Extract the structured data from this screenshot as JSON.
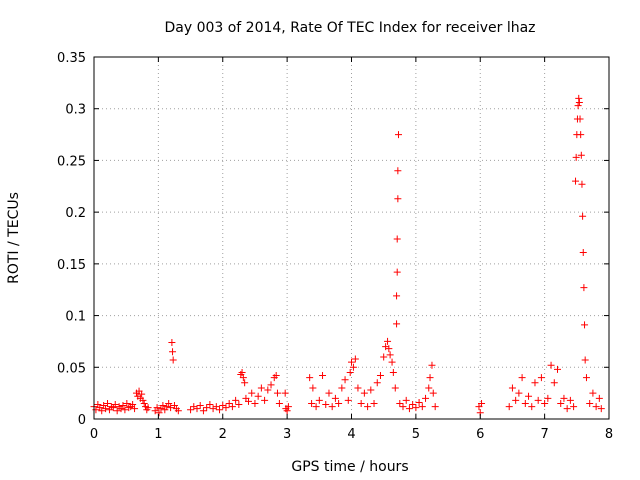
{
  "chart_data": {
    "type": "scatter",
    "title": "Day 003 of 2014, Rate Of TEC Index for receiver lhaz",
    "xlabel": "GPS time / hours",
    "ylabel": "ROTI / TECUs",
    "xlim": [
      0,
      8
    ],
    "ylim": [
      0,
      0.35
    ],
    "x_ticks": [
      "0",
      "1",
      "2",
      "3",
      "4",
      "5",
      "6",
      "7",
      "8"
    ],
    "y_ticks": [
      "0",
      "0.05",
      "0.1",
      "0.15",
      "0.2",
      "0.25",
      "0.3",
      "0.35"
    ],
    "grid": true,
    "marker": "+",
    "color": "#ff0000",
    "series": [
      {
        "name": "ROTI",
        "points": [
          [
            0.0,
            0.012
          ],
          [
            0.03,
            0.009
          ],
          [
            0.06,
            0.014
          ],
          [
            0.09,
            0.011
          ],
          [
            0.12,
            0.008
          ],
          [
            0.15,
            0.013
          ],
          [
            0.18,
            0.01
          ],
          [
            0.21,
            0.015
          ],
          [
            0.24,
            0.009
          ],
          [
            0.27,
            0.012
          ],
          [
            0.3,
            0.011
          ],
          [
            0.33,
            0.014
          ],
          [
            0.36,
            0.008
          ],
          [
            0.39,
            0.012
          ],
          [
            0.42,
            0.01
          ],
          [
            0.45,
            0.013
          ],
          [
            0.48,
            0.009
          ],
          [
            0.51,
            0.015
          ],
          [
            0.54,
            0.011
          ],
          [
            0.57,
            0.012
          ],
          [
            0.6,
            0.014
          ],
          [
            0.63,
            0.01
          ],
          [
            0.66,
            0.025
          ],
          [
            0.68,
            0.022
          ],
          [
            0.7,
            0.027
          ],
          [
            0.72,
            0.02
          ],
          [
            0.74,
            0.024
          ],
          [
            0.76,
            0.018
          ],
          [
            0.78,
            0.015
          ],
          [
            0.8,
            0.012
          ],
          [
            0.82,
            0.009
          ],
          [
            0.84,
            0.011
          ],
          [
            0.95,
            0.008
          ],
          [
            0.98,
            0.011
          ],
          [
            1.01,
            0.006
          ],
          [
            1.04,
            0.01
          ],
          [
            1.07,
            0.013
          ],
          [
            1.1,
            0.009
          ],
          [
            1.13,
            0.012
          ],
          [
            1.16,
            0.015
          ],
          [
            1.19,
            0.011
          ],
          [
            1.21,
            0.074
          ],
          [
            1.22,
            0.065
          ],
          [
            1.23,
            0.057
          ],
          [
            1.25,
            0.013
          ],
          [
            1.28,
            0.01
          ],
          [
            1.31,
            0.008
          ],
          [
            1.5,
            0.009
          ],
          [
            1.55,
            0.012
          ],
          [
            1.6,
            0.01
          ],
          [
            1.65,
            0.013
          ],
          [
            1.7,
            0.008
          ],
          [
            1.75,
            0.011
          ],
          [
            1.8,
            0.014
          ],
          [
            1.85,
            0.01
          ],
          [
            1.9,
            0.012
          ],
          [
            1.95,
            0.009
          ],
          [
            2.0,
            0.013
          ],
          [
            2.05,
            0.011
          ],
          [
            2.1,
            0.015
          ],
          [
            2.15,
            0.012
          ],
          [
            2.2,
            0.018
          ],
          [
            2.25,
            0.014
          ],
          [
            2.28,
            0.043
          ],
          [
            2.3,
            0.045
          ],
          [
            2.32,
            0.04
          ],
          [
            2.34,
            0.035
          ],
          [
            2.36,
            0.02
          ],
          [
            2.4,
            0.017
          ],
          [
            2.45,
            0.025
          ],
          [
            2.5,
            0.015
          ],
          [
            2.55,
            0.022
          ],
          [
            2.6,
            0.03
          ],
          [
            2.65,
            0.018
          ],
          [
            2.7,
            0.028
          ],
          [
            2.75,
            0.033
          ],
          [
            2.8,
            0.04
          ],
          [
            2.83,
            0.042
          ],
          [
            2.85,
            0.025
          ],
          [
            2.88,
            0.015
          ],
          [
            2.97,
            0.025
          ],
          [
            2.98,
            0.01
          ],
          [
            3.0,
            0.008
          ],
          [
            3.02,
            0.012
          ],
          [
            3.35,
            0.04
          ],
          [
            3.38,
            0.015
          ],
          [
            3.4,
            0.03
          ],
          [
            3.45,
            0.012
          ],
          [
            3.5,
            0.018
          ],
          [
            3.55,
            0.042
          ],
          [
            3.6,
            0.014
          ],
          [
            3.65,
            0.025
          ],
          [
            3.7,
            0.012
          ],
          [
            3.75,
            0.02
          ],
          [
            3.8,
            0.015
          ],
          [
            3.85,
            0.03
          ],
          [
            3.9,
            0.038
          ],
          [
            3.95,
            0.018
          ],
          [
            3.98,
            0.045
          ],
          [
            4.0,
            0.055
          ],
          [
            4.03,
            0.05
          ],
          [
            4.06,
            0.058
          ],
          [
            4.1,
            0.03
          ],
          [
            4.15,
            0.015
          ],
          [
            4.2,
            0.025
          ],
          [
            4.25,
            0.012
          ],
          [
            4.3,
            0.028
          ],
          [
            4.35,
            0.015
          ],
          [
            4.4,
            0.035
          ],
          [
            4.45,
            0.042
          ],
          [
            4.5,
            0.06
          ],
          [
            4.53,
            0.07
          ],
          [
            4.56,
            0.075
          ],
          [
            4.58,
            0.068
          ],
          [
            4.6,
            0.062
          ],
          [
            4.63,
            0.055
          ],
          [
            4.65,
            0.045
          ],
          [
            4.68,
            0.03
          ],
          [
            4.7,
            0.092
          ],
          [
            4.7,
            0.119
          ],
          [
            4.71,
            0.142
          ],
          [
            4.71,
            0.174
          ],
          [
            4.72,
            0.213
          ],
          [
            4.72,
            0.24
          ],
          [
            4.73,
            0.275
          ],
          [
            4.75,
            0.015
          ],
          [
            4.8,
            0.012
          ],
          [
            4.85,
            0.018
          ],
          [
            4.9,
            0.01
          ],
          [
            4.95,
            0.014
          ],
          [
            5.0,
            0.011
          ],
          [
            5.05,
            0.016
          ],
          [
            5.1,
            0.012
          ],
          [
            5.15,
            0.02
          ],
          [
            5.2,
            0.03
          ],
          [
            5.22,
            0.04
          ],
          [
            5.25,
            0.052
          ],
          [
            5.27,
            0.025
          ],
          [
            5.3,
            0.012
          ],
          [
            5.98,
            0.012
          ],
          [
            6.0,
            0.006
          ],
          [
            6.02,
            0.015
          ],
          [
            6.45,
            0.012
          ],
          [
            6.5,
            0.03
          ],
          [
            6.55,
            0.018
          ],
          [
            6.6,
            0.025
          ],
          [
            6.65,
            0.04
          ],
          [
            6.7,
            0.015
          ],
          [
            6.75,
            0.022
          ],
          [
            6.8,
            0.012
          ],
          [
            6.85,
            0.035
          ],
          [
            6.9,
            0.018
          ],
          [
            6.95,
            0.04
          ],
          [
            7.0,
            0.015
          ],
          [
            7.05,
            0.02
          ],
          [
            7.1,
            0.052
          ],
          [
            7.15,
            0.035
          ],
          [
            7.2,
            0.048
          ],
          [
            7.25,
            0.015
          ],
          [
            7.3,
            0.02
          ],
          [
            7.35,
            0.01
          ],
          [
            7.4,
            0.018
          ],
          [
            7.45,
            0.012
          ],
          [
            7.48,
            0.23
          ],
          [
            7.49,
            0.253
          ],
          [
            7.5,
            0.275
          ],
          [
            7.51,
            0.29
          ],
          [
            7.52,
            0.303
          ],
          [
            7.53,
            0.31
          ],
          [
            7.54,
            0.306
          ],
          [
            7.55,
            0.29
          ],
          [
            7.56,
            0.275
          ],
          [
            7.57,
            0.255
          ],
          [
            7.58,
            0.227
          ],
          [
            7.59,
            0.196
          ],
          [
            7.6,
            0.161
          ],
          [
            7.61,
            0.127
          ],
          [
            7.62,
            0.091
          ],
          [
            7.63,
            0.057
          ],
          [
            7.65,
            0.04
          ],
          [
            7.7,
            0.015
          ],
          [
            7.75,
            0.025
          ],
          [
            7.8,
            0.012
          ],
          [
            7.85,
            0.02
          ],
          [
            7.88,
            0.01
          ]
        ]
      }
    ]
  }
}
